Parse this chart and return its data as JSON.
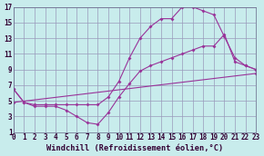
{
  "xlabel": "Windchill (Refroidissement éolien,°C)",
  "bg_color": "#c8ecec",
  "grid_color": "#9999bb",
  "line_color": "#993399",
  "xlim": [
    0,
    23
  ],
  "ylim": [
    1,
    17
  ],
  "xticks": [
    0,
    1,
    2,
    3,
    4,
    5,
    6,
    7,
    8,
    9,
    10,
    11,
    12,
    13,
    14,
    15,
    16,
    17,
    18,
    19,
    20,
    21,
    22,
    23
  ],
  "yticks": [
    1,
    3,
    5,
    7,
    9,
    11,
    13,
    15,
    17
  ],
  "line1_x": [
    0,
    1,
    2,
    3,
    4,
    5,
    6,
    7,
    8,
    9,
    10,
    11,
    12,
    13,
    14,
    15,
    16,
    17,
    18,
    19,
    20,
    21,
    22,
    23
  ],
  "line1_y": [
    6.5,
    4.8,
    4.3,
    4.3,
    4.3,
    3.8,
    3.0,
    2.2,
    2.0,
    3.5,
    5.5,
    7.2,
    8.8,
    9.5,
    10.0,
    10.5,
    11.0,
    11.5,
    12.0,
    12.0,
    13.5,
    10.0,
    9.5,
    9.0
  ],
  "line2_x": [
    0,
    1,
    2,
    3,
    4,
    5,
    6,
    7,
    8,
    9,
    10,
    11,
    12,
    13,
    14,
    15,
    16,
    17,
    18,
    19,
    20,
    21,
    22,
    23
  ],
  "line2_y": [
    6.5,
    4.8,
    4.5,
    4.5,
    4.5,
    4.5,
    4.5,
    4.5,
    4.5,
    5.5,
    7.5,
    10.5,
    13.0,
    14.5,
    15.5,
    15.5,
    17.0,
    17.0,
    16.5,
    16.0,
    13.2,
    10.5,
    9.5,
    9.0
  ],
  "line3_x": [
    0,
    23
  ],
  "line3_y": [
    4.8,
    8.5
  ],
  "markersize": 2.0,
  "linewidth": 0.8,
  "tick_fontsize": 5.5,
  "xlabel_fontsize": 6.2
}
